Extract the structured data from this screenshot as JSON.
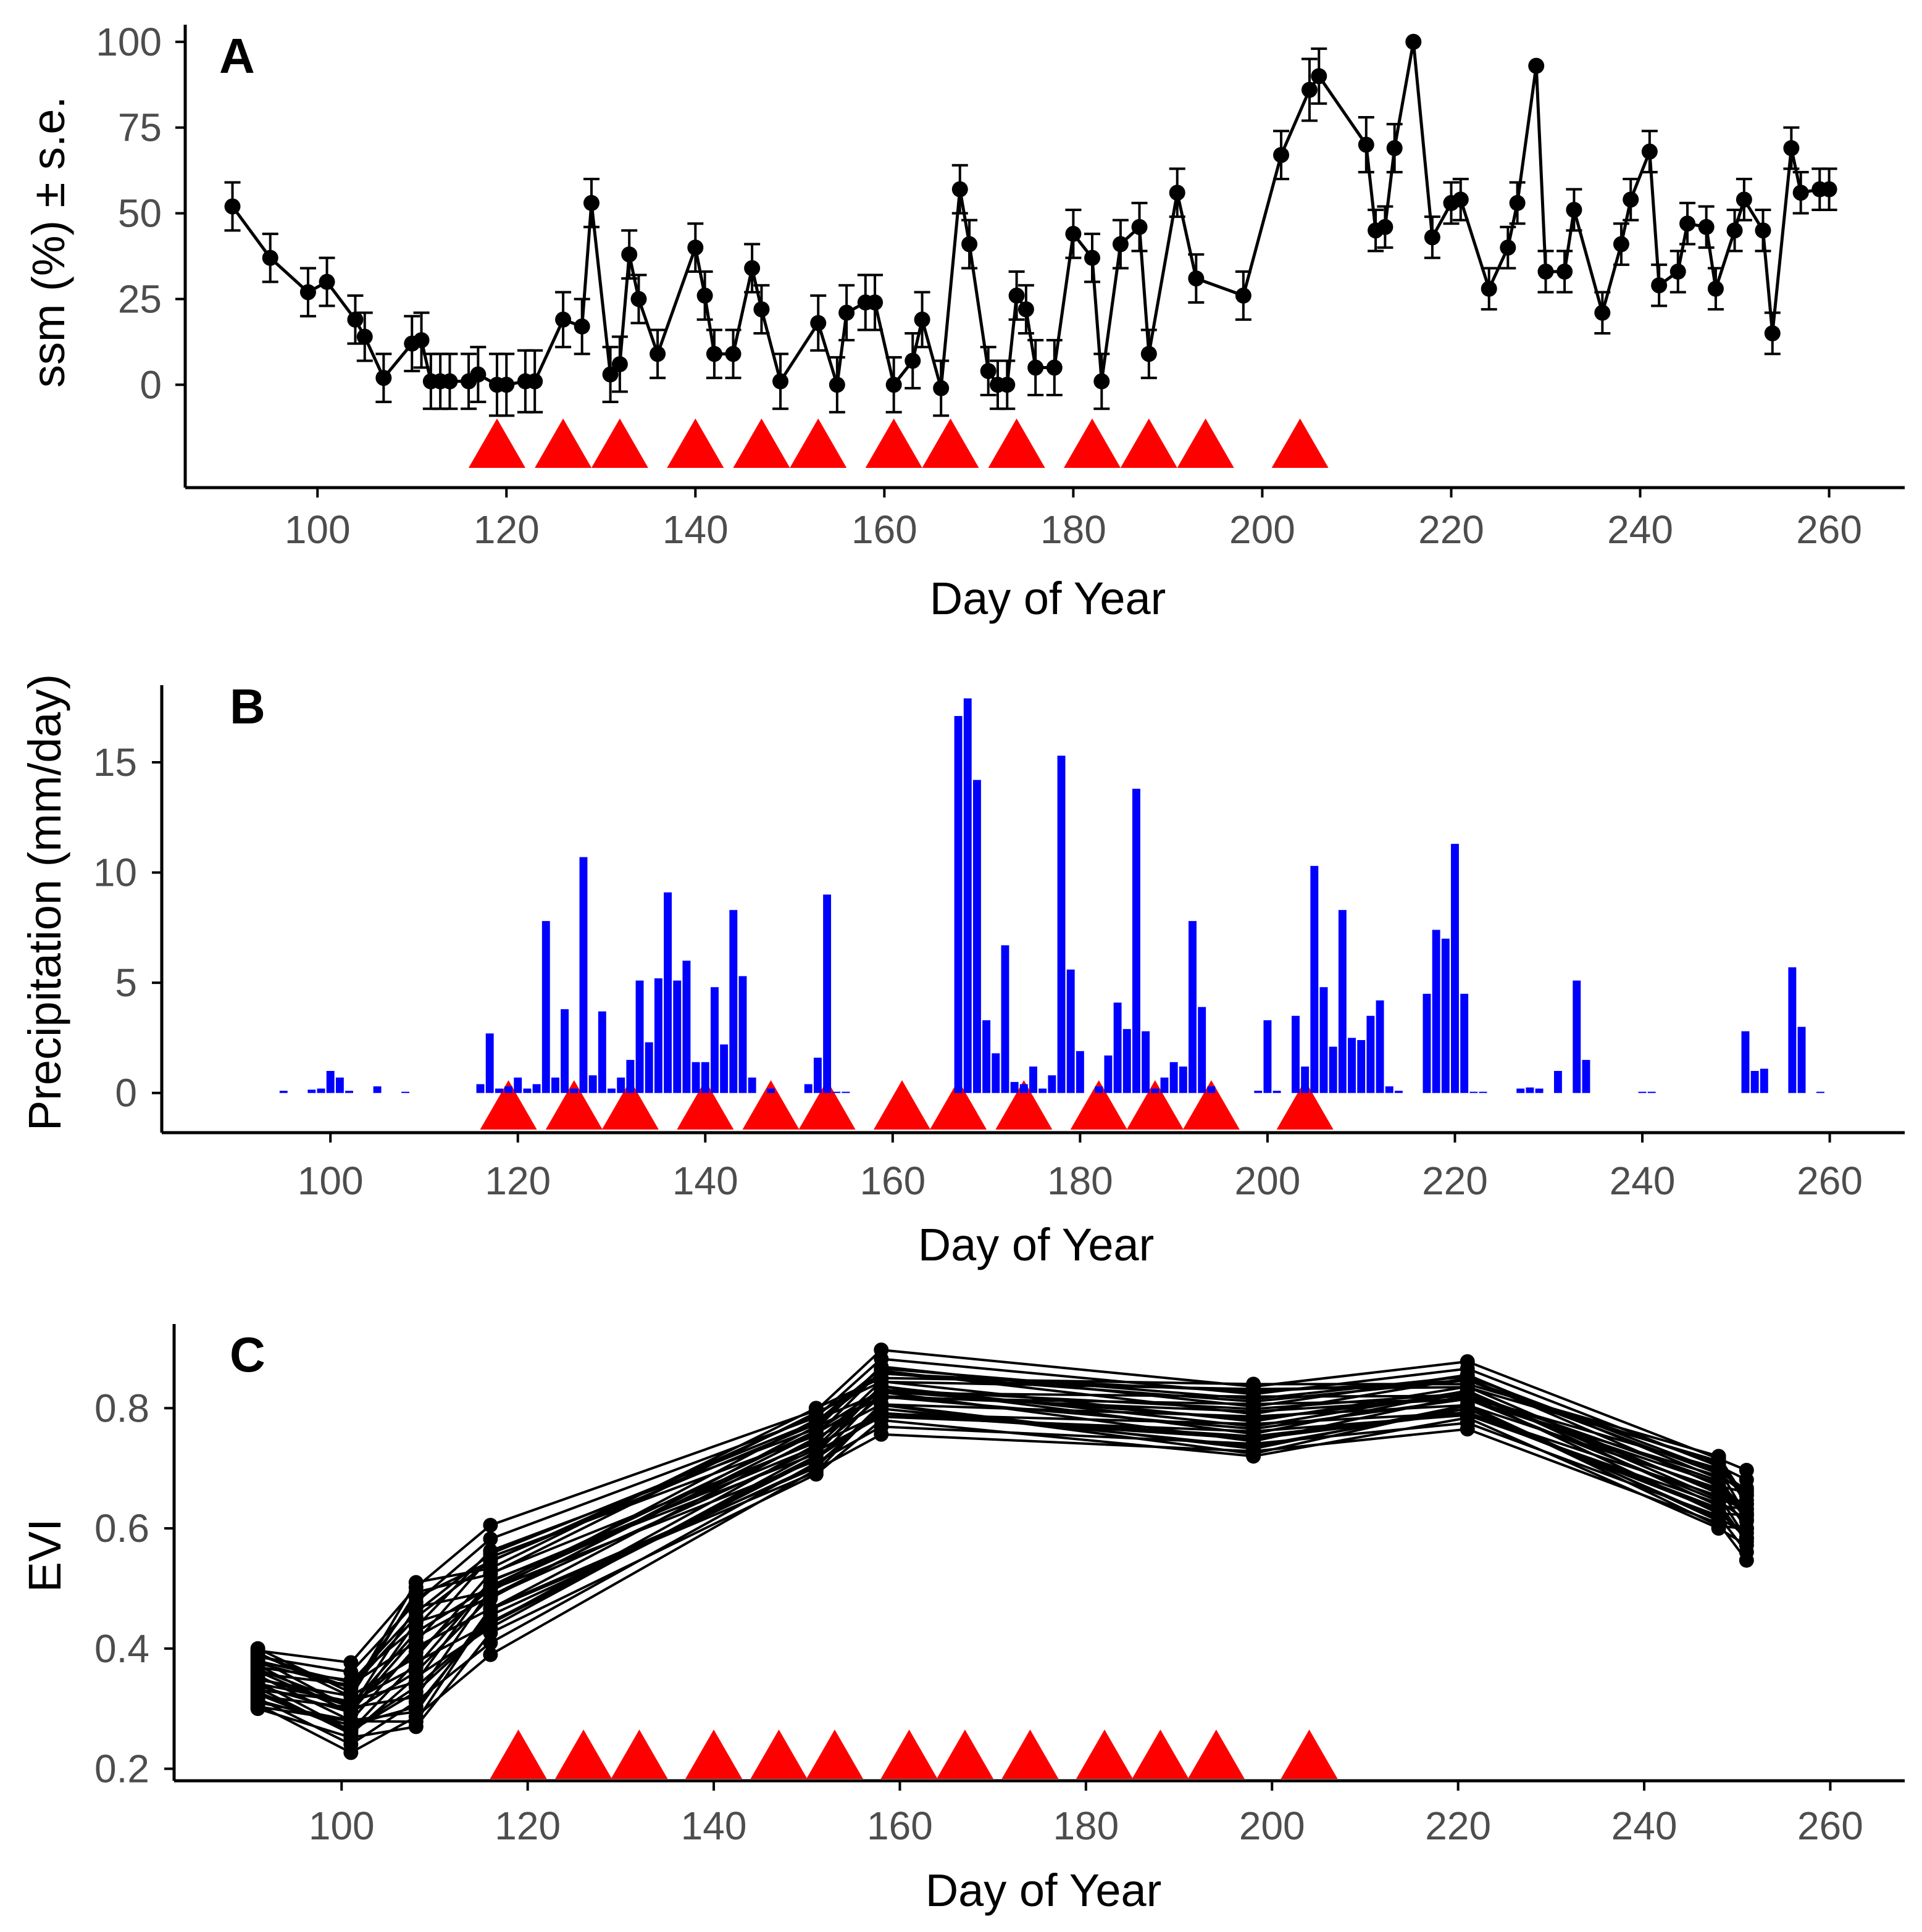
{
  "colors": {
    "line": "#000000",
    "bar": "#0000ff",
    "marker": "#ff0000",
    "axis": "#000000",
    "tick_text": "#4d4d4d"
  },
  "chart_data": [
    {
      "panel": "A",
      "type": "line",
      "xlabel": "Day of Year",
      "ylabel": "ssm (%) ± s.e.",
      "xlim": [
        86,
        268
      ],
      "ylim": [
        -30,
        105
      ],
      "xticks": [
        100,
        120,
        140,
        160,
        180,
        200,
        220,
        240,
        260
      ],
      "yticks": [
        0,
        25,
        50,
        75,
        100
      ],
      "grid": false,
      "error_bars": true,
      "series": [
        {
          "x": [
            91,
            95,
            99,
            101,
            104,
            105,
            107,
            110,
            111,
            112,
            113,
            114,
            116,
            117,
            119,
            120,
            122,
            123,
            126,
            128,
            129,
            131,
            132,
            133,
            134,
            136,
            140,
            141,
            142,
            144,
            146,
            147,
            149,
            153,
            155,
            156,
            158,
            159,
            161,
            163,
            164,
            166,
            168,
            169,
            171,
            172,
            173,
            174,
            175,
            176,
            178,
            180,
            182,
            183,
            185,
            187,
            188,
            191,
            193,
            198,
            202,
            205,
            206,
            211,
            212,
            213,
            214,
            216,
            218,
            220,
            221,
            224,
            226,
            227,
            229,
            230,
            232,
            233,
            236,
            238,
            239,
            241,
            242,
            244,
            245,
            247,
            248,
            250,
            251,
            253,
            254,
            256,
            257,
            259,
            260
          ],
          "y": [
            52,
            37,
            27,
            30,
            19,
            14,
            2,
            12,
            13,
            1,
            1,
            1,
            1,
            3,
            0,
            0,
            1,
            1,
            19,
            17,
            53,
            3,
            6,
            38,
            25,
            9,
            40,
            26,
            9,
            9,
            34,
            22,
            1,
            18,
            0,
            21,
            24,
            24,
            0,
            7,
            19,
            -1,
            57,
            41,
            4,
            0,
            0,
            26,
            22,
            5,
            5,
            44,
            37,
            1,
            41,
            46,
            9,
            56,
            31,
            26,
            67,
            86,
            90,
            70,
            45,
            46,
            69,
            100,
            43,
            53,
            54,
            28,
            40,
            53,
            93,
            33,
            33,
            51,
            21,
            41,
            54,
            68,
            29,
            33,
            47,
            46,
            28,
            45,
            54,
            45,
            15,
            69,
            56,
            57,
            57
          ],
          "se": [
            7,
            7,
            7,
            7,
            7,
            7,
            7,
            8,
            8,
            8,
            8,
            8,
            8,
            8,
            9,
            9,
            9,
            9,
            8,
            8,
            7,
            8,
            8,
            7,
            7,
            7,
            7,
            7,
            7,
            7,
            7,
            7,
            8,
            8,
            8,
            8,
            8,
            8,
            8,
            8,
            8,
            8,
            7,
            7,
            7,
            7,
            7,
            7,
            7,
            8,
            8,
            7,
            7,
            8,
            7,
            7,
            7,
            7,
            7,
            7,
            7,
            9,
            8,
            8,
            6,
            6,
            7,
            0,
            6,
            6,
            6,
            6,
            6,
            6,
            0,
            6,
            6,
            6,
            6,
            6,
            6,
            6,
            6,
            6,
            6,
            6,
            6,
            6,
            6,
            6,
            6,
            6,
            6,
            6,
            6
          ]
        }
      ],
      "markers": [
        119,
        126,
        132,
        140,
        147,
        153,
        161,
        167,
        174,
        182,
        188,
        194,
        204
      ]
    },
    {
      "panel": "B",
      "type": "bar",
      "xlabel": "Day of Year",
      "ylabel": "Precipitation (mm/day)",
      "xlim": [
        82,
        268
      ],
      "ylim": [
        -1.8,
        18.5
      ],
      "xticks": [
        100,
        120,
        140,
        160,
        180,
        200,
        220,
        240,
        260
      ],
      "yticks": [
        0,
        5,
        10,
        15
      ],
      "grid": false,
      "x": [
        95,
        98,
        99,
        100,
        101,
        102,
        105,
        108,
        116,
        117,
        118,
        119,
        120,
        121,
        122,
        123,
        124,
        125,
        126,
        127,
        128,
        129,
        130,
        131,
        132,
        133,
        134,
        135,
        136,
        137,
        138,
        139,
        140,
        141,
        142,
        143,
        144,
        145,
        147,
        151,
        152,
        153,
        154,
        155,
        167,
        168,
        169,
        170,
        171,
        172,
        173,
        174,
        175,
        176,
        177,
        178,
        179,
        180,
        182,
        183,
        184,
        185,
        186,
        187,
        188,
        189,
        190,
        191,
        192,
        193,
        194,
        199,
        200,
        201,
        203,
        204,
        205,
        206,
        207,
        208,
        209,
        210,
        211,
        212,
        213,
        214,
        217,
        218,
        219,
        220,
        221,
        222,
        223,
        227,
        228,
        229,
        231,
        233,
        234,
        240,
        241,
        251,
        252,
        253,
        256,
        257,
        259
      ],
      "values": [
        0.1,
        0.15,
        0.2,
        1.0,
        0.7,
        0.1,
        0.3,
        0.05,
        0.4,
        2.7,
        0.2,
        0.3,
        0.7,
        0.2,
        0.4,
        7.8,
        0.7,
        3.8,
        0.2,
        10.7,
        0.8,
        3.7,
        0.2,
        0.7,
        1.5,
        5.1,
        2.3,
        5.2,
        9.1,
        5.1,
        6.0,
        1.4,
        1.4,
        4.8,
        2.2,
        8.3,
        5.3,
        0.7,
        0.2,
        0.4,
        1.6,
        9.0,
        0.0,
        0.0,
        17.1,
        17.9,
        14.2,
        3.3,
        1.8,
        6.7,
        0.5,
        0.4,
        1.2,
        0.2,
        0.8,
        15.3,
        5.6,
        1.9,
        0.3,
        1.7,
        4.1,
        2.9,
        13.8,
        2.8,
        0.2,
        0.7,
        1.4,
        1.2,
        7.8,
        3.9,
        0.3,
        0.1,
        3.3,
        0.1,
        3.5,
        1.2,
        10.3,
        4.8,
        2.1,
        8.3,
        2.5,
        2.4,
        3.5,
        4.2,
        0.3,
        0.1,
        4.5,
        7.4,
        7.0,
        11.3,
        4.5,
        0.05,
        0.05,
        0.2,
        0.25,
        0.2,
        1.0,
        5.1,
        1.5,
        0.05,
        0.05,
        2.8,
        1.0,
        1.1,
        5.7,
        3.0,
        0.05
      ],
      "markers": [
        119,
        126,
        132,
        140,
        147,
        153,
        161,
        167,
        174,
        182,
        188,
        194,
        204
      ]
    },
    {
      "panel": "C",
      "type": "line",
      "xlabel": "Day of Year",
      "ylabel": "EVI",
      "xlim": [
        82,
        268
      ],
      "ylim": [
        0.18,
        0.94
      ],
      "xticks": [
        100,
        120,
        140,
        160,
        180,
        200,
        220,
        240,
        260
      ],
      "yticks": [
        0.2,
        0.4,
        0.6,
        0.8
      ],
      "grid": false,
      "x": [
        91,
        101,
        108,
        116,
        151,
        158,
        198,
        221,
        248,
        251
      ],
      "series_low": [
        0.3,
        0.22,
        0.27,
        0.38,
        0.69,
        0.75,
        0.72,
        0.76,
        0.6,
        0.54
      ],
      "series_high": [
        0.4,
        0.38,
        0.51,
        0.61,
        0.8,
        0.9,
        0.84,
        0.88,
        0.72,
        0.7
      ],
      "series_count": 30,
      "markers": [
        119,
        126,
        132,
        140,
        147,
        153,
        161,
        167,
        174,
        182,
        188,
        194,
        204
      ]
    }
  ]
}
